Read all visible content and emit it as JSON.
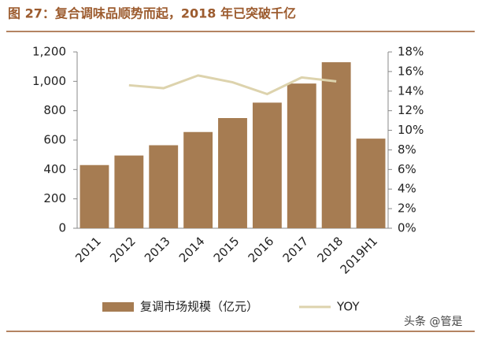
{
  "chart_data": {
    "type": "bar_line",
    "title": "图 27：复合调味品顺势而起，2018 年已突破千亿",
    "categories": [
      "2011",
      "2012",
      "2013",
      "2014",
      "2015",
      "2016",
      "2017",
      "2018",
      "2019H1"
    ],
    "series": [
      {
        "name": "复调市场规模（亿元）",
        "color": "#a67c52",
        "type": "bar",
        "values": [
          430,
          495,
          565,
          655,
          750,
          855,
          985,
          1130,
          610
        ]
      },
      {
        "name": "YOY",
        "color": "#ddd3ad",
        "type": "line",
        "axis": "y2",
        "values": [
          null,
          14.6,
          14.3,
          15.6,
          14.9,
          13.7,
          15.4,
          15.0,
          null
        ]
      }
    ],
    "ylim": [
      0,
      1200
    ],
    "yticks": [
      0,
      200,
      400,
      600,
      800,
      {
        "value": 1000,
        "label": "1,000"
      },
      {
        "value": 1200,
        "label": "1,200"
      }
    ],
    "y2lim": [
      0,
      18
    ],
    "y2ticks": [
      {
        "value": 0,
        "label": "0%"
      },
      {
        "value": 2,
        "label": "2%"
      },
      {
        "value": 4,
        "label": "4%"
      },
      {
        "value": 6,
        "label": "6%"
      },
      {
        "value": 8,
        "label": "8%"
      },
      {
        "value": 10,
        "label": "10%"
      },
      {
        "value": 12,
        "label": "12%"
      },
      {
        "value": 14,
        "label": "14%"
      },
      {
        "value": 16,
        "label": "16%"
      },
      {
        "value": 18,
        "label": "18%"
      }
    ],
    "watermark": "头条 @管是"
  }
}
